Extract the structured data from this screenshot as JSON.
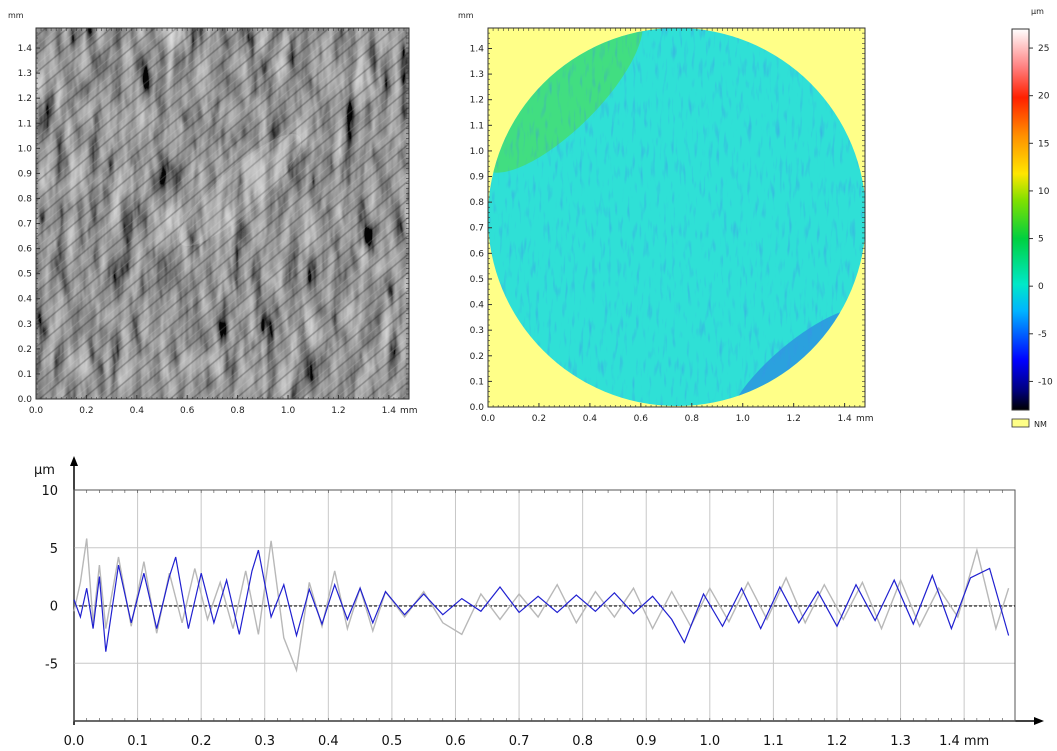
{
  "chart_data": [
    {
      "type": "heatmap",
      "panel": "intensity-image",
      "ylabel_unit": "mm",
      "xlabel_unit": "mm",
      "xlim": [
        0,
        1.48
      ],
      "ylim": [
        0,
        1.48
      ],
      "x_ticks": [
        "0.0",
        "0.2",
        "0.4",
        "0.6",
        "0.8",
        "1.0",
        "1.2",
        "1.4"
      ],
      "x_unit_label": "mm",
      "y_ticks": [
        "0.0",
        "0.1",
        "0.2",
        "0.3",
        "0.4",
        "0.5",
        "0.6",
        "0.7",
        "0.8",
        "0.9",
        "1.0",
        "1.1",
        "1.2",
        "1.3",
        "1.4"
      ],
      "colormap": "grayscale"
    },
    {
      "type": "heatmap",
      "panel": "height-map",
      "ylabel_unit": "mm",
      "xlim": [
        0,
        1.48
      ],
      "ylim": [
        0,
        1.48
      ],
      "x_ticks": [
        "0.0",
        "0.2",
        "0.4",
        "0.6",
        "0.8",
        "1.0",
        "1.2",
        "1.4"
      ],
      "x_unit_label": "mm",
      "y_ticks": [
        "0.0",
        "0.1",
        "0.2",
        "0.3",
        "0.4",
        "0.5",
        "0.6",
        "0.7",
        "0.8",
        "0.9",
        "1.0",
        "1.1",
        "1.2",
        "1.3",
        "1.4"
      ],
      "colorbar": {
        "unit": "µm",
        "range": [
          -13,
          27
        ],
        "ticks": [
          "25",
          "20",
          "15",
          "10",
          "5",
          "0",
          "-5",
          "-10"
        ],
        "not_measured_label": "NM",
        "not_measured_color": "#ffff88"
      },
      "background_color": "#ffff88",
      "surface_color": "#2fe0d6"
    },
    {
      "type": "line",
      "panel": "profile",
      "ylabel": "µm",
      "xlabel": "mm",
      "xlim": [
        0,
        1.48
      ],
      "ylim": [
        -10,
        10
      ],
      "x_ticks": [
        "0.0",
        "0.1",
        "0.2",
        "0.3",
        "0.4",
        "0.5",
        "0.6",
        "0.7",
        "0.8",
        "0.9",
        "1.0",
        "1.1",
        "1.2",
        "1.3",
        "1.4 mm"
      ],
      "y_ticks": [
        "10",
        "5",
        "0",
        "-5"
      ],
      "grid": true,
      "series": [
        {
          "color": "#b8b8b8",
          "x": [
            0.0,
            0.01,
            0.02,
            0.03,
            0.04,
            0.05,
            0.07,
            0.09,
            0.11,
            0.13,
            0.15,
            0.17,
            0.19,
            0.21,
            0.23,
            0.25,
            0.27,
            0.29,
            0.31,
            0.33,
            0.35,
            0.37,
            0.39,
            0.41,
            0.43,
            0.45,
            0.47,
            0.49,
            0.52,
            0.55,
            0.58,
            0.61,
            0.64,
            0.67,
            0.7,
            0.73,
            0.76,
            0.79,
            0.82,
            0.85,
            0.88,
            0.91,
            0.94,
            0.97,
            1.0,
            1.03,
            1.06,
            1.09,
            1.12,
            1.15,
            1.18,
            1.21,
            1.24,
            1.27,
            1.3,
            1.33,
            1.36,
            1.39,
            1.42,
            1.45,
            1.47
          ],
          "y": [
            -0.5,
            2.0,
            5.8,
            -1.5,
            3.5,
            -2.0,
            4.2,
            -1.8,
            3.8,
            -2.4,
            2.8,
            -1.5,
            3.2,
            -1.2,
            2.0,
            -2.0,
            3.0,
            -2.5,
            5.6,
            -2.8,
            -5.6,
            2.0,
            -1.8,
            3.0,
            -2.0,
            1.5,
            -2.2,
            1.2,
            -1.0,
            1.2,
            -1.5,
            -2.5,
            1.0,
            -1.2,
            1.0,
            -1.0,
            1.8,
            -1.5,
            1.2,
            -1.0,
            1.5,
            -2.0,
            1.2,
            -1.8,
            1.5,
            -1.4,
            2.0,
            -1.2,
            2.4,
            -1.5,
            1.8,
            -1.2,
            2.0,
            -2.0,
            2.2,
            -1.8,
            1.5,
            -1.0,
            4.8,
            -2.0,
            1.5
          ]
        },
        {
          "color": "#2020d0",
          "x": [
            0.0,
            0.01,
            0.02,
            0.03,
            0.04,
            0.05,
            0.07,
            0.09,
            0.11,
            0.13,
            0.15,
            0.16,
            0.18,
            0.2,
            0.22,
            0.24,
            0.26,
            0.28,
            0.29,
            0.31,
            0.33,
            0.35,
            0.37,
            0.39,
            0.41,
            0.43,
            0.45,
            0.47,
            0.49,
            0.52,
            0.55,
            0.58,
            0.61,
            0.64,
            0.67,
            0.7,
            0.73,
            0.76,
            0.79,
            0.82,
            0.85,
            0.88,
            0.91,
            0.94,
            0.96,
            0.99,
            1.02,
            1.05,
            1.08,
            1.11,
            1.14,
            1.17,
            1.2,
            1.23,
            1.26,
            1.29,
            1.32,
            1.35,
            1.38,
            1.41,
            1.44,
            1.47
          ],
          "y": [
            0.5,
            -1.0,
            1.5,
            -2.0,
            2.5,
            -4.0,
            3.5,
            -1.5,
            2.8,
            -2.0,
            2.5,
            4.2,
            -2.0,
            2.8,
            -1.5,
            2.2,
            -2.5,
            3.0,
            4.8,
            -1.0,
            1.8,
            -2.6,
            1.4,
            -1.6,
            1.8,
            -1.2,
            1.5,
            -1.5,
            1.2,
            -0.8,
            1.0,
            -0.8,
            0.6,
            -0.5,
            1.6,
            -0.6,
            0.8,
            -0.6,
            0.9,
            -0.5,
            1.1,
            -0.7,
            0.8,
            -1.2,
            -3.2,
            1.0,
            -1.8,
            1.5,
            -2.0,
            1.6,
            -1.5,
            1.2,
            -1.8,
            1.8,
            -1.3,
            2.2,
            -1.6,
            2.6,
            -2.0,
            2.4,
            3.2,
            -2.6
          ]
        }
      ]
    }
  ]
}
